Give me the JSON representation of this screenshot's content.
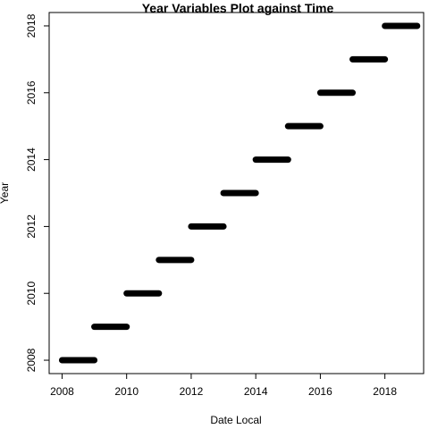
{
  "chart_data": {
    "type": "scatter",
    "title": "Year Variables Plot against Time",
    "xlabel": "Date Local",
    "ylabel": "Year",
    "xlim": [
      2007.6,
      2019.2
    ],
    "ylim": [
      2007.6,
      2018.4
    ],
    "xticks": [
      "2008",
      "2010",
      "2012",
      "2014",
      "2016",
      "2018"
    ],
    "yticks": [
      "2008",
      "2010",
      "2012",
      "2014",
      "2016",
      "2018"
    ],
    "grid": false,
    "series": [
      {
        "points": [
          {
            "x_start": 2008,
            "x_end": 2009,
            "y": 2008
          },
          {
            "x_start": 2009,
            "x_end": 2010,
            "y": 2009
          },
          {
            "x_start": 2010,
            "x_end": 2011,
            "y": 2010
          },
          {
            "x_start": 2011,
            "x_end": 2012,
            "y": 2011
          },
          {
            "x_start": 2012,
            "x_end": 2013,
            "y": 2012
          },
          {
            "x_start": 2013,
            "x_end": 2014,
            "y": 2013
          },
          {
            "x_start": 2014,
            "x_end": 2015,
            "y": 2014
          },
          {
            "x_start": 2015,
            "x_end": 2016,
            "y": 2015
          },
          {
            "x_start": 2016,
            "x_end": 2017,
            "y": 2016
          },
          {
            "x_start": 2017,
            "x_end": 2018,
            "y": 2017
          },
          {
            "x_start": 2018,
            "x_end": 2019,
            "y": 2018
          }
        ]
      }
    ]
  }
}
